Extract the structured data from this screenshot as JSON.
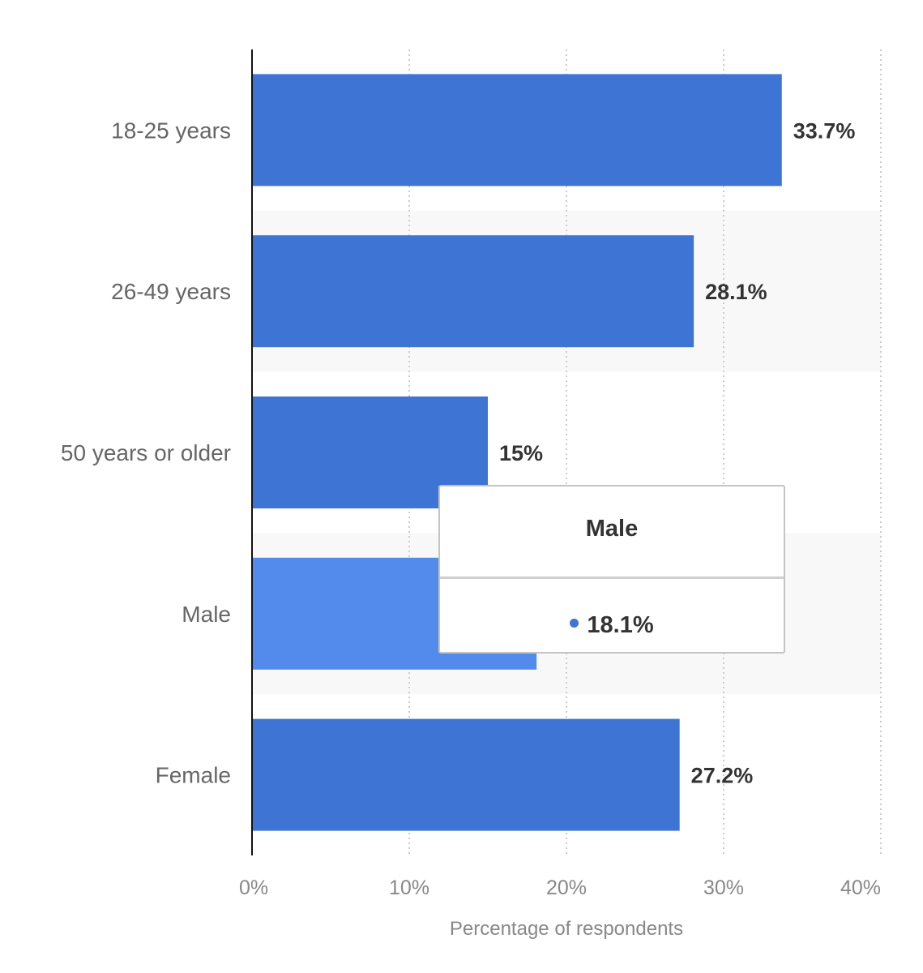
{
  "chart_data": {
    "type": "bar",
    "orientation": "horizontal",
    "categories": [
      "18-25 years",
      "26-49 years",
      "50 years or older",
      "Male",
      "Female"
    ],
    "values": [
      33.7,
      28.1,
      15,
      18.1,
      27.2
    ],
    "value_labels": [
      "33.7%",
      "28.1%",
      "15%",
      "",
      "27.2%"
    ],
    "xlabel": "Percentage of respondents",
    "xlim": [
      0,
      40
    ],
    "x_ticks": [
      "0%",
      "10%",
      "20%",
      "30%",
      "40%"
    ],
    "grid": true,
    "bar_color": "#3e74d4",
    "highlight_color": "#528beb",
    "highlight_index": 3
  },
  "tooltip": {
    "title": "Male",
    "value": "18.1%",
    "dot_color": "#3e74d4"
  }
}
